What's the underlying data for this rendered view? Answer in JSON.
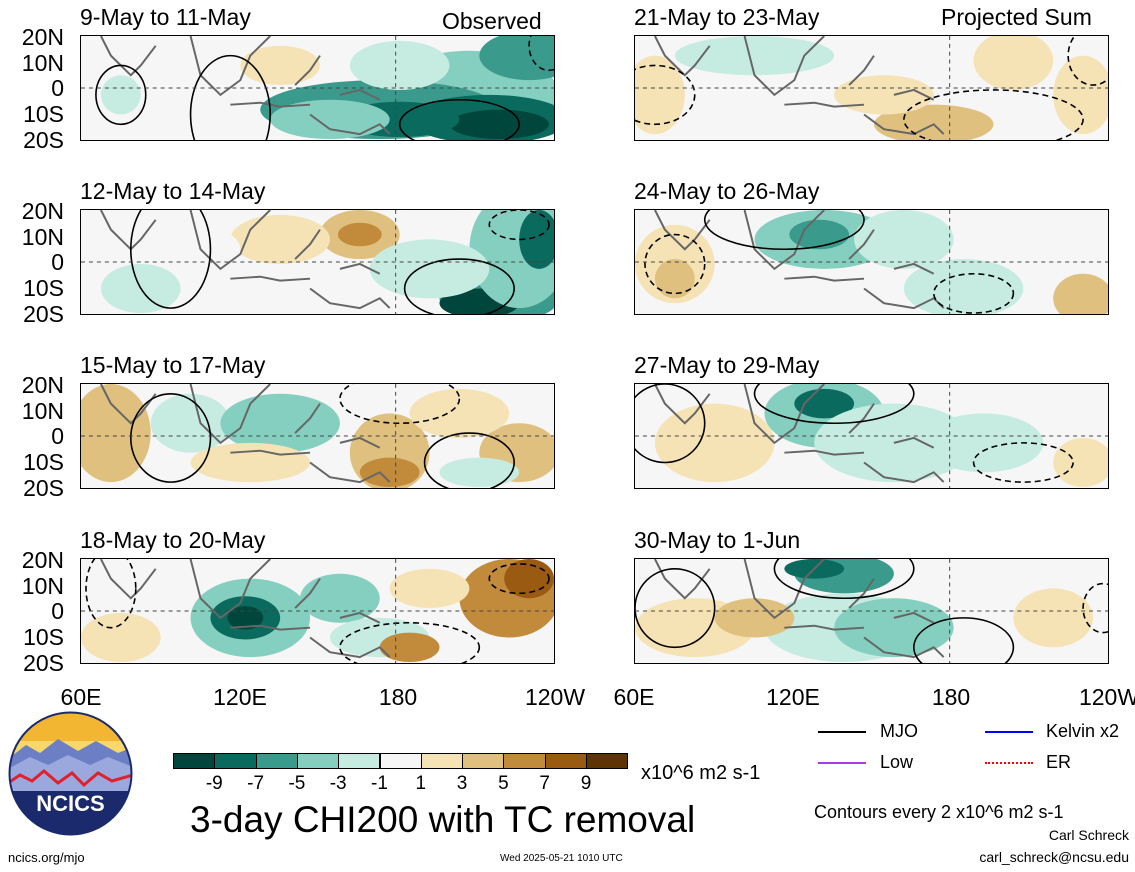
{
  "left_header": "Observed",
  "right_header": "Projected Sum",
  "panels": [
    {
      "title": "9-May to 11-May",
      "scheme": 0
    },
    {
      "title": "12-May to 14-May",
      "scheme": 1
    },
    {
      "title": "15-May to 17-May",
      "scheme": 2
    },
    {
      "title": "18-May to 20-May",
      "scheme": 3
    },
    {
      "title": "21-May to 23-May",
      "scheme": 4
    },
    {
      "title": "24-May to 26-May",
      "scheme": 5
    },
    {
      "title": "27-May to 29-May",
      "scheme": 6
    },
    {
      "title": "30-May to 1-Jun",
      "scheme": 7
    }
  ],
  "y_ticks": [
    "20N",
    "10N",
    "0",
    "10S",
    "20S"
  ],
  "x_ticks_left": [
    "60E",
    "120E",
    "180",
    "120W"
  ],
  "x_ticks_right": [
    "60E",
    "120E",
    "180",
    "120W"
  ],
  "colorbar": {
    "colors": [
      "#00463c",
      "#0a6a5e",
      "#3a9a8c",
      "#84cfc0",
      "#c6ece2",
      "#f6f6f6",
      "#f5e3b5",
      "#dfc07e",
      "#c28b3c",
      "#9a5a12",
      "#5e3404"
    ],
    "ticks": [
      "-9",
      "-7",
      "-5",
      "-3",
      "-1",
      "1",
      "3",
      "5",
      "7",
      "9"
    ],
    "units": "x10^6 m2 s-1"
  },
  "legend": {
    "mjo": {
      "label": "MJO",
      "color": "#000000"
    },
    "kelvin": {
      "label": "Kelvin x2",
      "color": "#0000ff"
    },
    "low": {
      "label": "Low",
      "color": "#a040e0"
    },
    "er": {
      "label": "ER",
      "color": "#ff0000"
    }
  },
  "main_title": "3-day CHI200 with TC removal",
  "contour_note": "Contours every 2 x10^6 m2 s-1",
  "author": "Carl Schreck",
  "email": "carl_schreck@ncsu.edu",
  "url": "ncics.org/mjo",
  "timestamp": "Wed 2025-05-21 1010 UTC",
  "logo_text": "NCICS"
}
